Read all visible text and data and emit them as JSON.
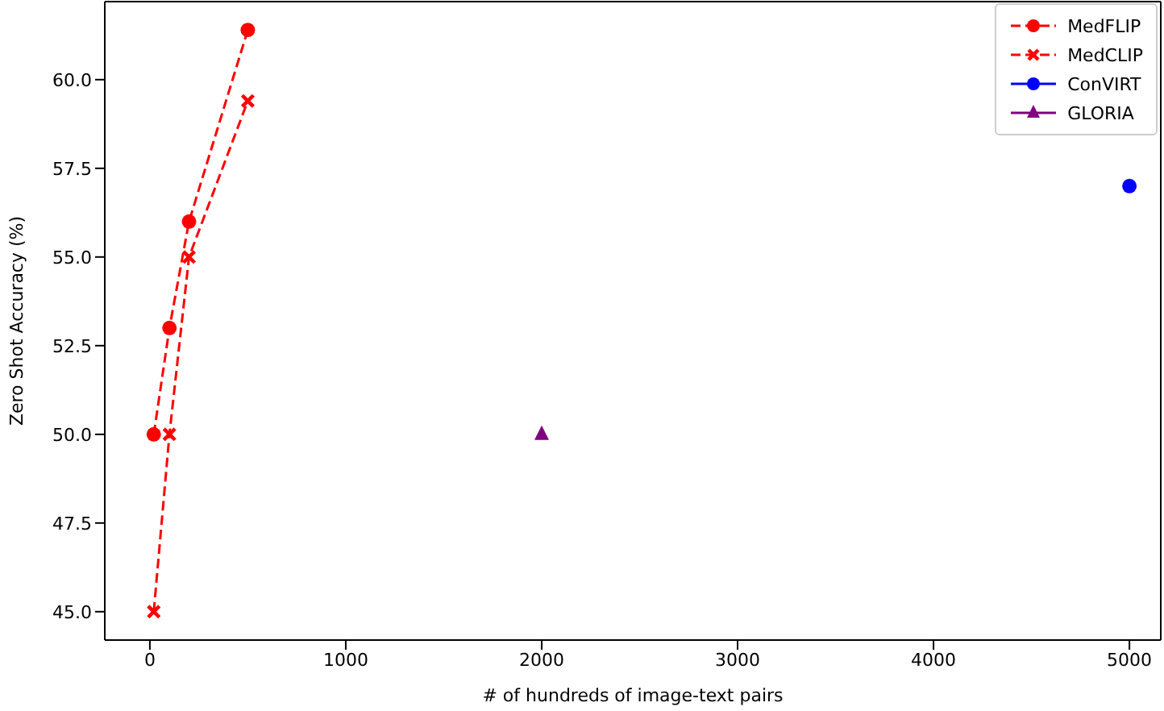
{
  "chart_data": {
    "type": "line",
    "xlabel": "# of hundreds of image-text pairs",
    "ylabel": "Zero Shot Accuracy (%)",
    "series": [
      {
        "name": "MedFLIP",
        "color": "#ff0000",
        "x": [
          20,
          100,
          200,
          500
        ],
        "values": [
          50,
          53,
          56,
          61.4
        ],
        "marker": "circle",
        "line_style": "dashed"
      },
      {
        "name": "MedCLIP",
        "color": "#ff0000",
        "x": [
          20,
          100,
          200,
          500
        ],
        "values": [
          45,
          50,
          55,
          59.4
        ],
        "marker": "cross",
        "line_style": "dashed"
      },
      {
        "name": "ConVIRT",
        "color": "#0000ff",
        "x": [
          5000
        ],
        "values": [
          57
        ],
        "marker": "circle",
        "line_style": "solid"
      },
      {
        "name": "GLORIA",
        "color": "#800080",
        "x": [
          2000
        ],
        "values": [
          50
        ],
        "marker": "triangle",
        "line_style": "solid"
      }
    ],
    "xlim": [
      -230,
      5160
    ],
    "xticks": [
      0,
      1000,
      2000,
      3000,
      4000,
      5000
    ],
    "ylim": [
      44.2,
      62.2
    ],
    "yticks": [
      {
        "value": 45,
        "label": "45.0"
      },
      {
        "value": 47.5,
        "label": "47.5"
      },
      {
        "value": 50,
        "label": "50.0"
      },
      {
        "value": 52.5,
        "label": "52.5"
      },
      {
        "value": 55,
        "label": "55.0"
      },
      {
        "value": 57.5,
        "label": "57.5"
      },
      {
        "value": 60,
        "label": "60.0"
      }
    ],
    "grid": false,
    "legend": "top right"
  }
}
